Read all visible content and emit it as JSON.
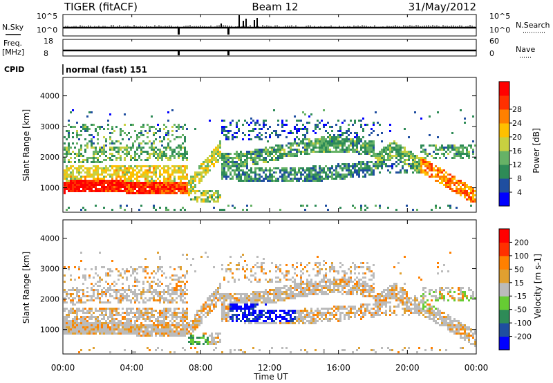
{
  "header": {
    "title": "TIGER (fitACF)",
    "beam": "Beam 12",
    "date": "31/May/2012"
  },
  "sky_panel": {
    "left_label": "N.Sky",
    "right_label": "N.Search",
    "left_ticks": [
      "10^5",
      "10^0"
    ],
    "right_ticks": [
      "10^5",
      "10^0"
    ]
  },
  "freq_panel": {
    "left_label": "Freq.",
    "left_unit": "[MHz]",
    "right_label": "Nave",
    "left_ticks": [
      "18",
      "8"
    ],
    "right_ticks": [
      "60",
      "0"
    ]
  },
  "cpid": {
    "label": "CPID",
    "value": "normal (fast) 151"
  },
  "chart_data": [
    {
      "type": "heatmap",
      "name": "power",
      "ylabel": "Slant Range [km]",
      "yticks": [
        1000,
        2000,
        3000,
        4000
      ],
      "ylim": [
        200,
        4600
      ],
      "colorbar_label": "Power [dB]",
      "colorbar_ticks": [
        "4",
        "8",
        "12",
        "16",
        "20",
        "24",
        "28"
      ],
      "colors": [
        "#0000ff",
        "#1f4ea0",
        "#2e8b57",
        "#66b266",
        "#c8d040",
        "#ffc000",
        "#ff8000",
        "#ff3000",
        "#ff0000"
      ]
    },
    {
      "type": "heatmap",
      "name": "velocity",
      "ylabel": "Slant Range [km]",
      "yticks": [
        1000,
        2000,
        3000,
        4000
      ],
      "ylim": [
        200,
        4600
      ],
      "colorbar_label": "Velocity [m s-1]",
      "colorbar_ticks": [
        "200",
        "100",
        "50",
        "15",
        "-15",
        "-50",
        "-100",
        "-200"
      ],
      "colors": [
        "#0000ff",
        "#1f4ea0",
        "#2e8b57",
        "#66cc33",
        "#bbbbbb",
        "#e0a030",
        "#ff8000",
        "#ff3000",
        "#ff0000"
      ]
    }
  ],
  "x_axis": {
    "label": "Time UT",
    "ticks": [
      "00:00",
      "04:00",
      "08:00",
      "12:00",
      "16:00",
      "20:00",
      "00:00"
    ]
  }
}
